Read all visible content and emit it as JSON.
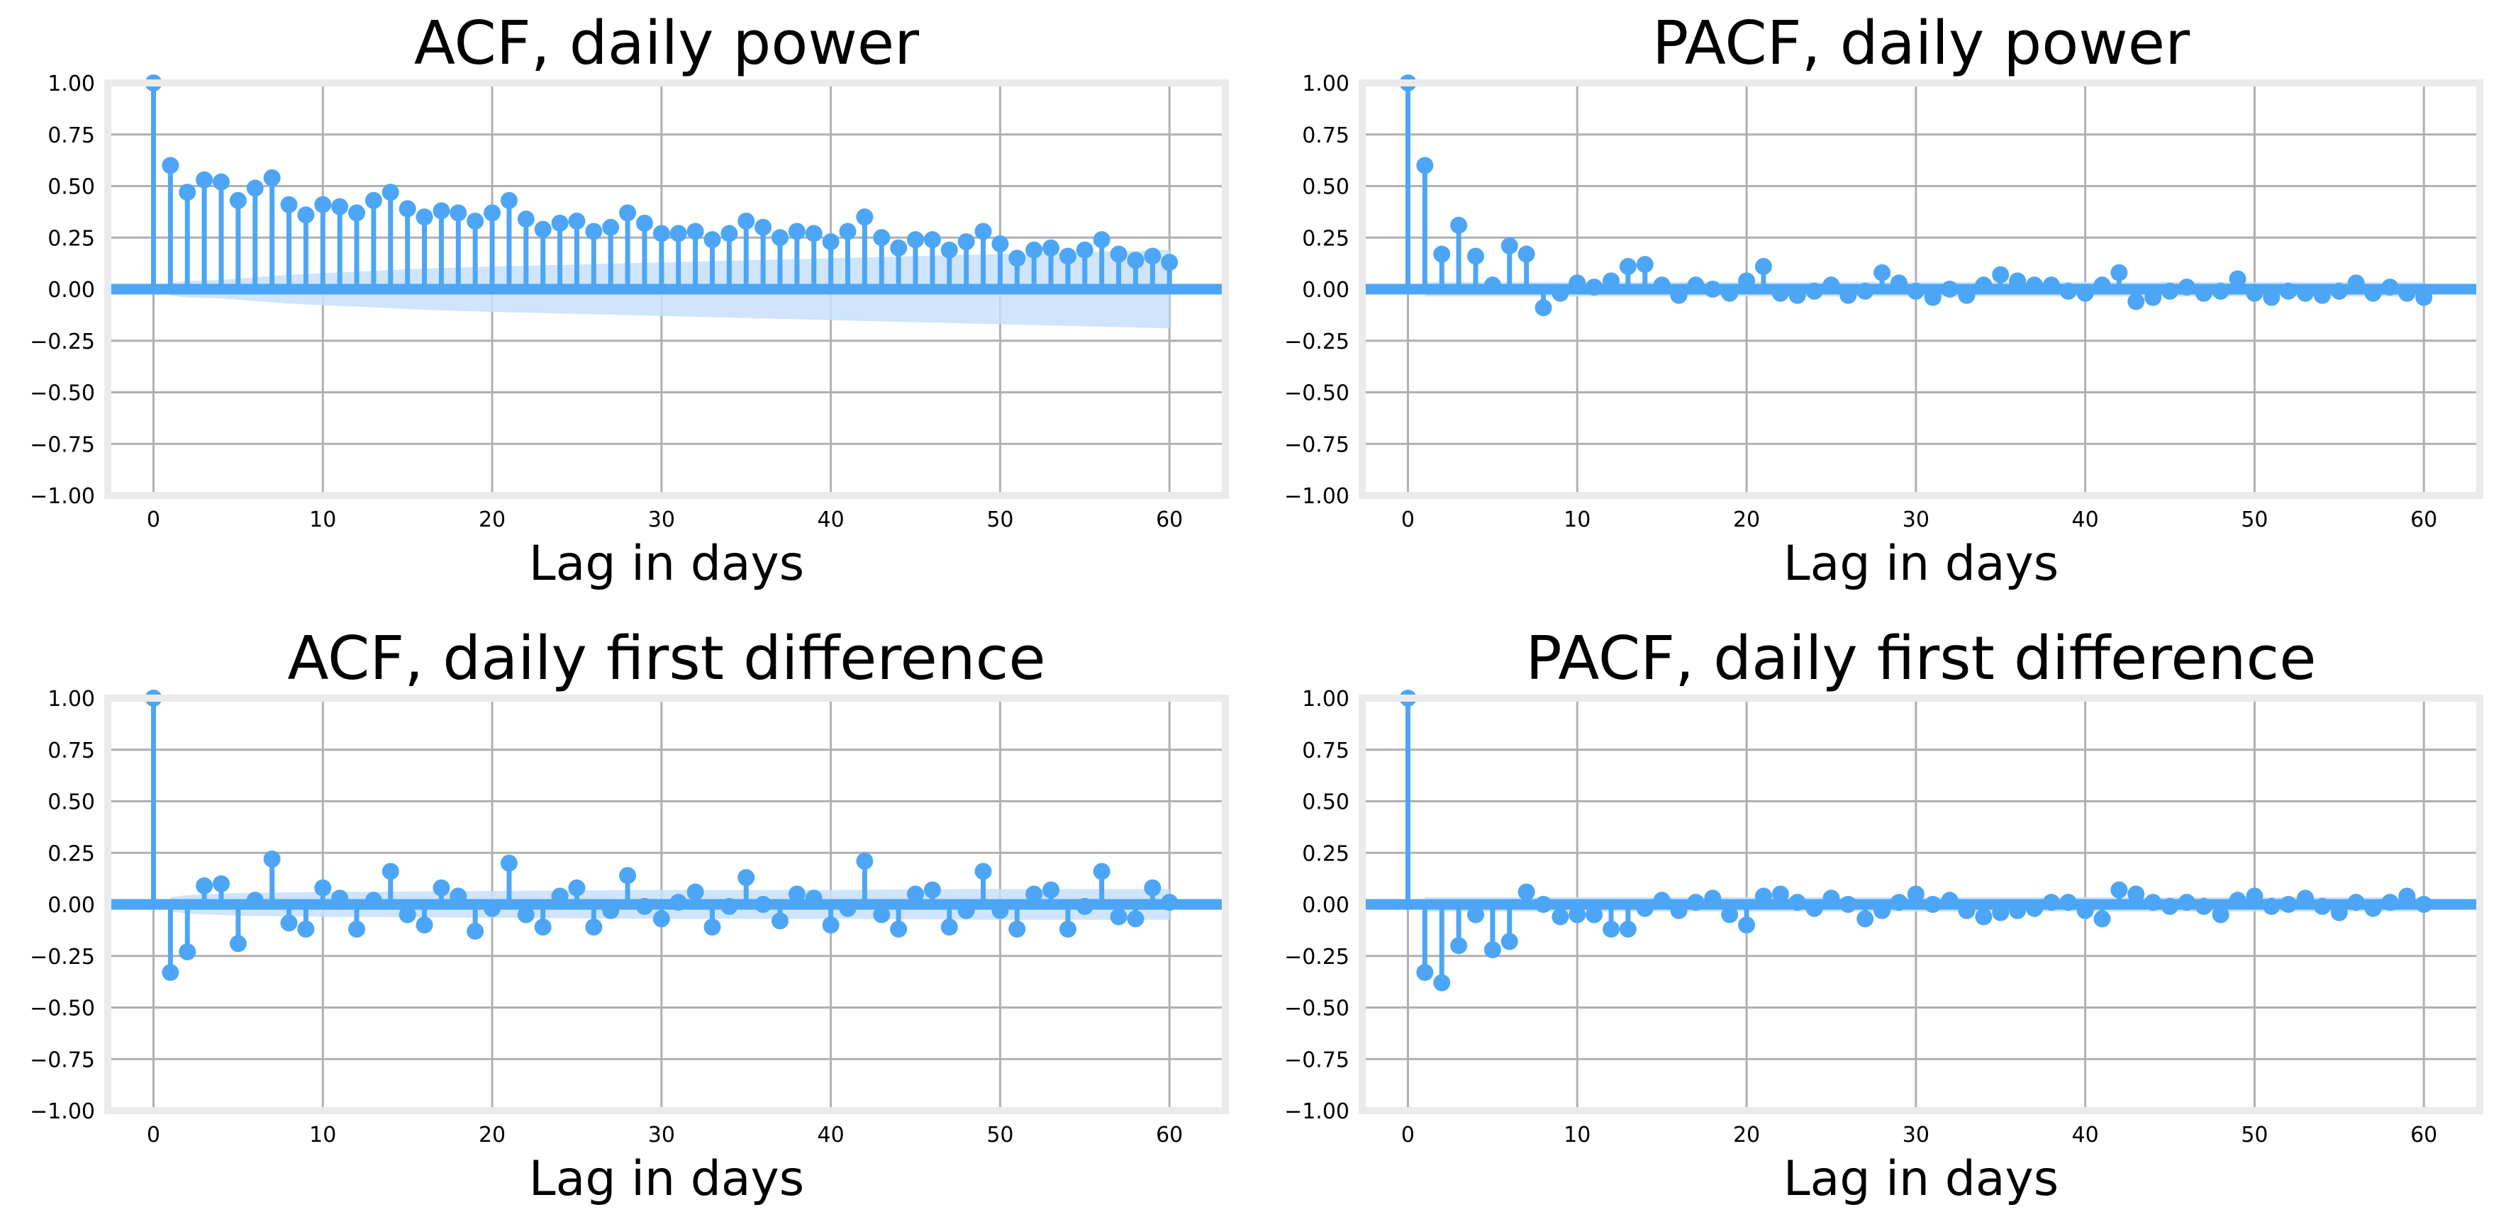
{
  "colors": {
    "stem": "#4da6f5",
    "confidence_band": "#c8e1fb",
    "grid": "#b0b0b0",
    "frame": "#ebebeb"
  },
  "chart_data": [
    {
      "type": "stem",
      "title": "ACF, daily power",
      "xlabel": "Lag in days",
      "ylabel": "",
      "xlim": [
        -2.7,
        63.3
      ],
      "ylim": [
        -1.0,
        1.0
      ],
      "xticks": [
        0,
        10,
        20,
        30,
        40,
        50,
        60
      ],
      "yticks": [
        -1.0,
        -0.75,
        -0.5,
        -0.25,
        0.0,
        0.25,
        0.5,
        0.75,
        1.0
      ],
      "grid": true,
      "x": [
        0,
        1,
        2,
        3,
        4,
        5,
        6,
        7,
        8,
        9,
        10,
        11,
        12,
        13,
        14,
        15,
        16,
        17,
        18,
        19,
        20,
        21,
        22,
        23,
        24,
        25,
        26,
        27,
        28,
        29,
        30,
        31,
        32,
        33,
        34,
        35,
        36,
        37,
        38,
        39,
        40,
        41,
        42,
        43,
        44,
        45,
        46,
        47,
        48,
        49,
        50,
        51,
        52,
        53,
        54,
        55,
        56,
        57,
        58,
        59,
        60
      ],
      "values": [
        1.0,
        0.6,
        0.47,
        0.53,
        0.52,
        0.43,
        0.49,
        0.54,
        0.41,
        0.36,
        0.41,
        0.4,
        0.37,
        0.43,
        0.47,
        0.39,
        0.35,
        0.38,
        0.37,
        0.33,
        0.37,
        0.43,
        0.34,
        0.29,
        0.32,
        0.33,
        0.28,
        0.3,
        0.37,
        0.32,
        0.27,
        0.27,
        0.28,
        0.24,
        0.27,
        0.33,
        0.3,
        0.25,
        0.28,
        0.27,
        0.23,
        0.28,
        0.35,
        0.25,
        0.2,
        0.24,
        0.24,
        0.19,
        0.23,
        0.28,
        0.22,
        0.15,
        0.19,
        0.2,
        0.16,
        0.19,
        0.24,
        0.17,
        0.14,
        0.16,
        0.13
      ],
      "confidence_band": {
        "x": [
          1,
          2,
          4,
          8,
          12,
          16,
          20,
          25,
          30,
          35,
          40,
          45,
          50,
          55,
          60
        ],
        "upper": [
          0.03,
          0.04,
          0.045,
          0.07,
          0.085,
          0.1,
          0.11,
          0.12,
          0.13,
          0.14,
          0.15,
          0.16,
          0.17,
          0.18,
          0.19
        ],
        "lower": [
          -0.03,
          -0.04,
          -0.045,
          -0.07,
          -0.085,
          -0.1,
          -0.11,
          -0.12,
          -0.13,
          -0.14,
          -0.15,
          -0.16,
          -0.17,
          -0.18,
          -0.19
        ]
      }
    },
    {
      "type": "stem",
      "title": "PACF, daily power",
      "xlabel": "Lag in days",
      "ylabel": "",
      "xlim": [
        -2.7,
        63.3
      ],
      "ylim": [
        -1.0,
        1.0
      ],
      "xticks": [
        0,
        10,
        20,
        30,
        40,
        50,
        60
      ],
      "yticks": [
        -1.0,
        -0.75,
        -0.5,
        -0.25,
        0.0,
        0.25,
        0.5,
        0.75,
        1.0
      ],
      "grid": true,
      "x": [
        0,
        1,
        2,
        3,
        4,
        5,
        6,
        7,
        8,
        9,
        10,
        11,
        12,
        13,
        14,
        15,
        16,
        17,
        18,
        19,
        20,
        21,
        22,
        23,
        24,
        25,
        26,
        27,
        28,
        29,
        30,
        31,
        32,
        33,
        34,
        35,
        36,
        37,
        38,
        39,
        40,
        41,
        42,
        43,
        44,
        45,
        46,
        47,
        48,
        49,
        50,
        51,
        52,
        53,
        54,
        55,
        56,
        57,
        58,
        59,
        60
      ],
      "values": [
        1.0,
        0.6,
        0.17,
        0.31,
        0.16,
        0.02,
        0.21,
        0.17,
        -0.09,
        -0.02,
        0.03,
        0.01,
        0.04,
        0.11,
        0.12,
        0.02,
        -0.03,
        0.02,
        0.0,
        -0.02,
        0.04,
        0.11,
        -0.02,
        -0.03,
        -0.01,
        0.02,
        -0.03,
        -0.01,
        0.08,
        0.03,
        -0.01,
        -0.04,
        0.0,
        -0.03,
        0.02,
        0.07,
        0.04,
        0.02,
        0.02,
        -0.01,
        -0.02,
        0.02,
        0.08,
        -0.06,
        -0.04,
        -0.01,
        0.01,
        -0.02,
        -0.01,
        0.05,
        -0.02,
        -0.04,
        -0.01,
        -0.02,
        -0.03,
        -0.01,
        0.03,
        -0.02,
        0.01,
        -0.02,
        -0.04
      ],
      "confidence_band": {
        "x": [
          1,
          60
        ],
        "upper": [
          0.035,
          0.035
        ],
        "lower": [
          -0.035,
          -0.035
        ]
      }
    },
    {
      "type": "stem",
      "title": "ACF, daily first difference",
      "xlabel": "Lag in days",
      "ylabel": "",
      "xlim": [
        -2.7,
        63.3
      ],
      "ylim": [
        -1.0,
        1.0
      ],
      "xticks": [
        0,
        10,
        20,
        30,
        40,
        50,
        60
      ],
      "yticks": [
        -1.0,
        -0.75,
        -0.5,
        -0.25,
        0.0,
        0.25,
        0.5,
        0.75,
        1.0
      ],
      "grid": true,
      "x": [
        0,
        1,
        2,
        3,
        4,
        5,
        6,
        7,
        8,
        9,
        10,
        11,
        12,
        13,
        14,
        15,
        16,
        17,
        18,
        19,
        20,
        21,
        22,
        23,
        24,
        25,
        26,
        27,
        28,
        29,
        30,
        31,
        32,
        33,
        34,
        35,
        36,
        37,
        38,
        39,
        40,
        41,
        42,
        43,
        44,
        45,
        46,
        47,
        48,
        49,
        50,
        51,
        52,
        53,
        54,
        55,
        56,
        57,
        58,
        59,
        60
      ],
      "values": [
        1.0,
        -0.33,
        -0.23,
        0.09,
        0.1,
        -0.19,
        0.02,
        0.22,
        -0.09,
        -0.12,
        0.08,
        0.03,
        -0.12,
        0.02,
        0.16,
        -0.05,
        -0.1,
        0.08,
        0.04,
        -0.13,
        -0.02,
        0.2,
        -0.05,
        -0.11,
        0.04,
        0.08,
        -0.11,
        -0.03,
        0.14,
        -0.01,
        -0.07,
        0.01,
        0.06,
        -0.11,
        -0.01,
        0.13,
        0.0,
        -0.08,
        0.05,
        0.03,
        -0.1,
        -0.02,
        0.21,
        -0.05,
        -0.12,
        0.05,
        0.07,
        -0.11,
        -0.03,
        0.16,
        -0.03,
        -0.12,
        0.05,
        0.07,
        -0.12,
        -0.01,
        0.16,
        -0.06,
        -0.07,
        0.08,
        0.01
      ],
      "confidence_band": {
        "x": [
          1,
          2,
          5,
          10,
          20,
          30,
          40,
          50,
          60
        ],
        "upper": [
          0.035,
          0.045,
          0.055,
          0.06,
          0.065,
          0.07,
          0.07,
          0.075,
          0.075
        ],
        "lower": [
          -0.035,
          -0.045,
          -0.055,
          -0.06,
          -0.065,
          -0.07,
          -0.07,
          -0.075,
          -0.075
        ]
      }
    },
    {
      "type": "stem",
      "title": "PACF, daily first difference",
      "xlabel": "Lag in days",
      "ylabel": "",
      "xlim": [
        -2.7,
        63.3
      ],
      "ylim": [
        -1.0,
        1.0
      ],
      "xticks": [
        0,
        10,
        20,
        30,
        40,
        50,
        60
      ],
      "yticks": [
        -1.0,
        -0.75,
        -0.5,
        -0.25,
        0.0,
        0.25,
        0.5,
        0.75,
        1.0
      ],
      "grid": true,
      "x": [
        0,
        1,
        2,
        3,
        4,
        5,
        6,
        7,
        8,
        9,
        10,
        11,
        12,
        13,
        14,
        15,
        16,
        17,
        18,
        19,
        20,
        21,
        22,
        23,
        24,
        25,
        26,
        27,
        28,
        29,
        30,
        31,
        32,
        33,
        34,
        35,
        36,
        37,
        38,
        39,
        40,
        41,
        42,
        43,
        44,
        45,
        46,
        47,
        48,
        49,
        50,
        51,
        52,
        53,
        54,
        55,
        56,
        57,
        58,
        59,
        60
      ],
      "values": [
        1.0,
        -0.33,
        -0.38,
        -0.2,
        -0.05,
        -0.22,
        -0.18,
        0.06,
        0.0,
        -0.06,
        -0.05,
        -0.05,
        -0.12,
        -0.12,
        -0.02,
        0.02,
        -0.03,
        0.01,
        0.03,
        -0.05,
        -0.1,
        0.04,
        0.05,
        0.01,
        -0.02,
        0.03,
        0.0,
        -0.07,
        -0.03,
        0.01,
        0.05,
        0.0,
        0.02,
        -0.03,
        -0.06,
        -0.04,
        -0.03,
        -0.02,
        0.01,
        0.01,
        -0.03,
        -0.07,
        0.07,
        0.05,
        0.01,
        -0.01,
        0.01,
        -0.01,
        -0.05,
        0.02,
        0.04,
        -0.01,
        0.0,
        0.03,
        -0.01,
        -0.04,
        0.01,
        -0.02,
        0.01,
        0.04,
        0.0
      ],
      "confidence_band": {
        "x": [
          1,
          60
        ],
        "upper": [
          0.035,
          0.035
        ],
        "lower": [
          -0.035,
          -0.035
        ]
      }
    }
  ]
}
